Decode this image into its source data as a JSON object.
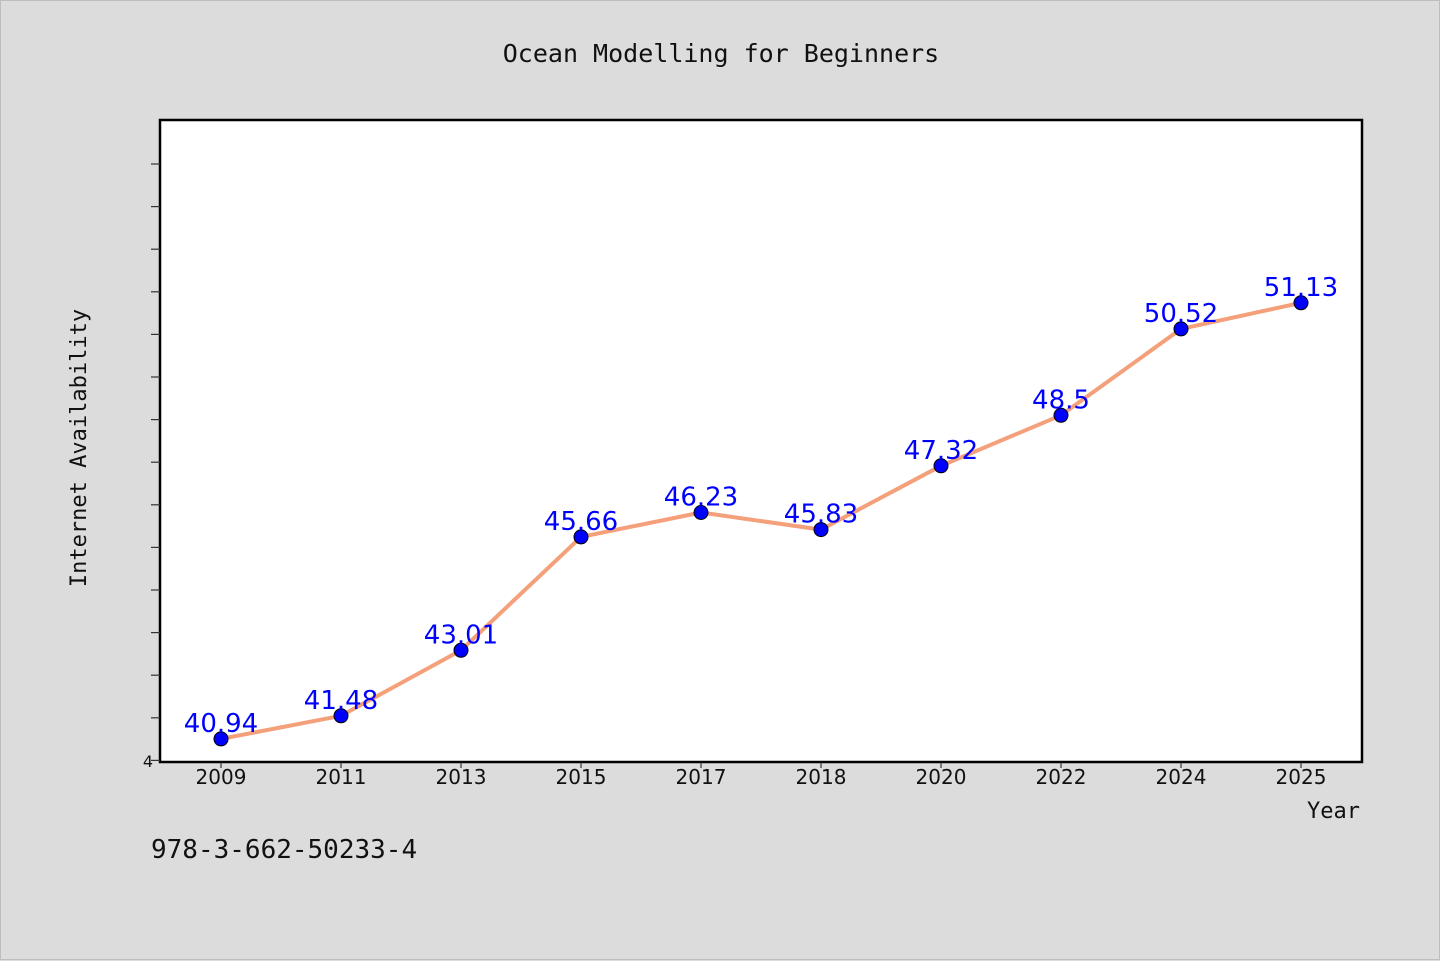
{
  "chart_data": {
    "type": "line",
    "title": "Ocean Modelling for Beginners",
    "xlabel": "Year",
    "ylabel": "Internet Availability",
    "categories": [
      "2009",
      "2011",
      "2013",
      "2015",
      "2017",
      "2018",
      "2020",
      "2022",
      "2024",
      "2025"
    ],
    "series": [
      {
        "values": [
          40.94,
          41.48,
          43.01,
          45.66,
          46.23,
          45.83,
          47.32,
          48.5,
          50.52,
          51.13
        ]
      }
    ],
    "data_labels": [
      "40.94",
      "41.48",
      "43.01",
      "45.66",
      "46.23",
      "45.83",
      "47.32",
      "48.5",
      "50.52",
      "51.13"
    ],
    "y_tick_label": "4",
    "ylim": [
      40.4,
      55.4
    ],
    "grid": false,
    "line_color": "#f4a07a",
    "marker_color": "#0000ff",
    "label_color": "#0000ff"
  },
  "footer": {
    "isbn": "978-3-662-50233-4"
  }
}
